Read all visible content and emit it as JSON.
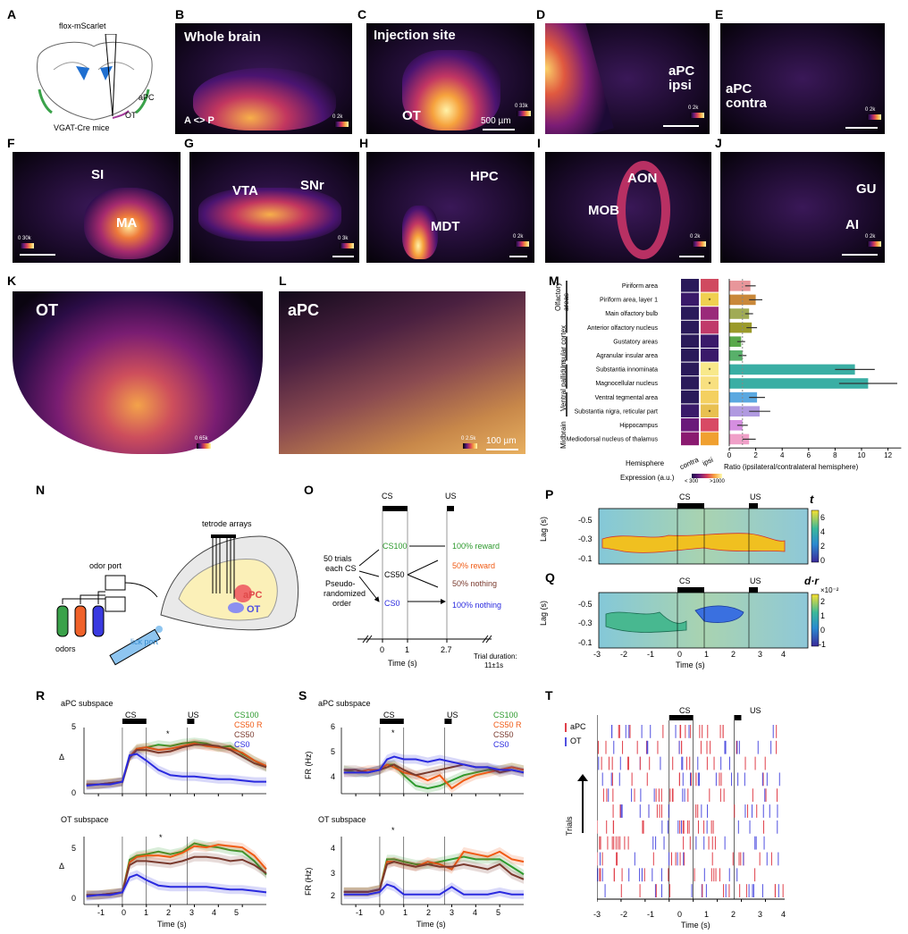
{
  "panels": {
    "A": "A",
    "B": "B",
    "C": "C",
    "D": "D",
    "E": "E",
    "F": "F",
    "G": "G",
    "H": "H",
    "I": "I",
    "J": "J",
    "K": "K",
    "L": "L",
    "M": "M",
    "N": "N",
    "O": "O",
    "P": "P",
    "Q": "Q",
    "R": "R",
    "S": "S",
    "T": "T"
  },
  "panelA": {
    "top": "flox-mScarlet",
    "bottom": "VGAT-Cre mice",
    "apc": "aPC",
    "ot": "OT"
  },
  "panelB": {
    "title": "Whole brain",
    "axis": "A <> P",
    "cbar": "0  2k"
  },
  "panelC": {
    "title": "Injection site",
    "label": "OT",
    "scale": "500 µm",
    "cbar": "0  33k"
  },
  "panelD": {
    "label": "aPC\nipsi",
    "cbar": "0  2k"
  },
  "panelE": {
    "label": "aPC\ncontra",
    "cbar": "0  2k"
  },
  "panelF": {
    "l1": "SI",
    "l2": "MA",
    "cbar": "0  30k"
  },
  "panelG": {
    "l1": "VTA",
    "l2": "SNr",
    "cbar": "0  3k"
  },
  "panelH": {
    "l1": "HPC",
    "l2": "MDT",
    "cbar": "0  2k"
  },
  "panelI": {
    "l1": "AON",
    "l2": "MOB",
    "cbar": "0  2k"
  },
  "panelJ": {
    "l1": "GU",
    "l2": "AI",
    "cbar": "0  2k"
  },
  "panelK": {
    "title": "OT",
    "scale": "250 µm",
    "cbar": "0  65k"
  },
  "panelL": {
    "title": "aPC",
    "scale": "100 µm",
    "cbar": "0  2.5k"
  },
  "panelM": {
    "groups": [
      "Olfactory areas",
      "Insular cortex",
      "Ventral pallidum",
      "Midbrain"
    ],
    "regions": [
      "Piriform area",
      "Piriform area, layer 1",
      "Main olfactory bulb",
      "Anterior olfactory nucleus",
      "Gustatory areas",
      "Agranular insular area",
      "Substantia innominata",
      "Magnocellular nucleus",
      "Ventral tegmental area",
      "Substantia nigra, reticular part",
      "Hippocampus",
      "Mediodorsal nucleus of thalamus"
    ],
    "hemisphere_label": "Hemisphere",
    "col_contra": "contra",
    "col_ipsi": "ipsi",
    "expression_label": "Expression (a.u.)",
    "exp_low": "< 300",
    "exp_high": ">1000",
    "xlabel": "Ratio (ipsilateral/contralateral hemisphere)",
    "xticks": [
      "0",
      "2",
      "4",
      "6",
      "8",
      "10",
      "12"
    ],
    "star": "*"
  },
  "panelN": {
    "tetrode": "tetrode arrays",
    "odorport": "odor port",
    "odors": "odors",
    "lickport": "lick port",
    "apc": "aPC",
    "ot": "OT"
  },
  "panelO": {
    "cs": "CS",
    "us": "US",
    "left1": "50 trials",
    "left2": "each CS",
    "left3": "Pseudo-",
    "left4": "randomized",
    "left5": "order",
    "cs100": "CS100",
    "cs50": "CS50",
    "cs0": "CS0",
    "r100": "100% reward",
    "r50": "50% reward",
    "n50": "50% nothing",
    "n100": "100% nothing",
    "t0": "0",
    "t1": "1",
    "t27": "2.7",
    "xlabel": "Time (s)",
    "dur1": "Trial duration:",
    "dur2": "11±1s"
  },
  "panelP": {
    "cs": "CS",
    "us": "US",
    "ylabel": "Lag (s)",
    "yticks": [
      "-0.5",
      "-0.3",
      "-0.1"
    ],
    "cbar_title": "t",
    "cbar_ticks": [
      "6",
      "4",
      "2",
      "0"
    ]
  },
  "panelQ": {
    "cs": "CS",
    "us": "US",
    "ylabel": "Lag (s)",
    "yticks": [
      "-0.5",
      "-0.3",
      "-0.1"
    ],
    "cbar_title": "d·r",
    "cbar_exp": "×10⁻²",
    "cbar_ticks": [
      "2",
      "1",
      "0",
      "-1"
    ],
    "xticks": [
      "-3",
      "-2",
      "-1",
      "0",
      "1",
      "2",
      "3",
      "4"
    ],
    "xlabel": "Time (s)"
  },
  "panelR": {
    "top_title": "aPC subspace",
    "bot_title": "OT subspace",
    "cs": "CS",
    "us": "US",
    "ylabel": "Δ",
    "star": "*",
    "legend": [
      "CS100",
      "CS50 R",
      "CS50",
      "CS0"
    ],
    "yticks_top": [
      "5",
      "0"
    ],
    "yticks_bot": [
      "5",
      "0"
    ],
    "xticks": [
      "-1",
      "0",
      "1",
      "2",
      "3",
      "4",
      "5"
    ],
    "xlabel": "Time (s)"
  },
  "panelS": {
    "top_title": "aPC subspace",
    "bot_title": "OT subspace",
    "cs": "CS",
    "us": "US",
    "ylabel": "FR (Hz)",
    "star": "*",
    "legend": [
      "CS100",
      "CS50 R",
      "CS50",
      "CS0"
    ],
    "yticks_top": [
      "6",
      "5",
      "4"
    ],
    "yticks_bot": [
      "4",
      "3",
      "2"
    ],
    "xticks": [
      "-1",
      "0",
      "1",
      "2",
      "3",
      "4",
      "5"
    ],
    "xlabel": "Time (s)"
  },
  "panelT": {
    "cs": "CS",
    "us": "US",
    "legend_apc": "aPC",
    "legend_ot": "OT",
    "ylabel": "Trials",
    "xticks": [
      "-3",
      "-2",
      "-1",
      "0",
      "1",
      "2",
      "3",
      "4"
    ],
    "xlabel": "Time (s)"
  },
  "colors": {
    "cs100": "#2e9a2e",
    "cs50r": "#f05a14",
    "cs50": "#7a3a2e",
    "cs0": "#2a2adf",
    "apc": "#e0404a",
    "ot": "#5050e0"
  },
  "chart_data": [
    {
      "type": "bar",
      "id": "M",
      "categories": [
        "Piriform area",
        "Piriform area, layer 1",
        "Main olfactory bulb",
        "Anterior olfactory nucleus",
        "Gustatory areas",
        "Agranular insular area",
        "Substantia innominata",
        "Magnocellular nucleus",
        "Ventral tegmental area",
        "Substantia nigra, reticular part",
        "Hippocampus",
        "Mediodorsal nucleus of thalamus"
      ],
      "values": [
        1.6,
        2.0,
        1.5,
        1.7,
        0.9,
        1.0,
        9.5,
        10.5,
        2.1,
        2.3,
        1.0,
        1.5
      ],
      "errors": [
        0.4,
        0.5,
        0.3,
        0.4,
        0.3,
        0.3,
        1.5,
        2.2,
        0.6,
        0.8,
        0.4,
        0.5
      ],
      "colors": [
        "#e8969a",
        "#c9883a",
        "#a0ab55",
        "#9b9a2a",
        "#59a84a",
        "#58b06a",
        "#3aaea4",
        "#3aaea4",
        "#5aa8e0",
        "#b09ae0",
        "#d58ee0",
        "#f0a0c8"
      ],
      "xlabel": "Ratio (ipsilateral/contralateral hemisphere)",
      "xlim": [
        0,
        13
      ]
    },
    {
      "type": "line",
      "id": "R-top",
      "title": "aPC subspace",
      "ylabel": "Δ",
      "xlabel": "Time (s)",
      "x": [
        -1.5,
        -1,
        -0.5,
        0,
        0.3,
        0.6,
        1,
        1.5,
        2,
        2.5,
        3,
        3.5,
        4,
        4.5,
        5,
        5.5,
        6
      ],
      "series": [
        {
          "name": "CS100",
          "values": [
            0.7,
            0.7,
            0.8,
            0.9,
            2.8,
            3.4,
            3.5,
            3.7,
            3.6,
            3.8,
            3.9,
            3.8,
            3.5,
            3.6,
            3.0,
            2.5,
            2.0
          ]
        },
        {
          "name": "CS50 R",
          "values": [
            0.7,
            0.7,
            0.8,
            0.9,
            2.8,
            3.4,
            3.5,
            3.3,
            3.4,
            3.6,
            3.8,
            3.6,
            3.5,
            3.4,
            3.1,
            2.5,
            2.1
          ]
        },
        {
          "name": "CS50",
          "values": [
            0.7,
            0.7,
            0.8,
            0.9,
            2.7,
            3.3,
            3.3,
            3.1,
            3.2,
            3.5,
            3.7,
            3.7,
            3.6,
            3.3,
            2.8,
            2.3,
            2.0
          ]
        },
        {
          "name": "CS0",
          "values": [
            0.6,
            0.7,
            0.7,
            0.9,
            2.9,
            3.0,
            2.5,
            1.8,
            1.4,
            1.3,
            1.3,
            1.2,
            1.1,
            1.1,
            1.0,
            0.9,
            0.9
          ]
        }
      ],
      "ylim": [
        0,
        5
      ]
    },
    {
      "type": "line",
      "id": "R-bottom",
      "title": "OT subspace",
      "ylabel": "Δ",
      "xlabel": "Time (s)",
      "x": [
        -1.5,
        -1,
        -0.5,
        0,
        0.3,
        0.6,
        1,
        1.5,
        2,
        2.5,
        3,
        3.5,
        4,
        4.5,
        5,
        5.5,
        6
      ],
      "series": [
        {
          "name": "CS100",
          "values": [
            0.7,
            0.7,
            0.8,
            0.9,
            3.3,
            3.6,
            3.7,
            3.9,
            3.7,
            3.9,
            4.5,
            4.3,
            4.2,
            4.0,
            3.9,
            3.2,
            2.2
          ]
        },
        {
          "name": "CS50 R",
          "values": [
            0.7,
            0.7,
            0.8,
            0.9,
            3.1,
            3.5,
            3.6,
            3.6,
            3.5,
            3.8,
            4.3,
            4.2,
            4.4,
            4.3,
            4.2,
            3.6,
            2.6
          ]
        },
        {
          "name": "CS50",
          "values": [
            0.7,
            0.7,
            0.8,
            0.9,
            2.9,
            3.2,
            3.2,
            3.1,
            3.0,
            3.2,
            3.5,
            3.5,
            3.4,
            3.2,
            3.3,
            2.9,
            2.3
          ]
        },
        {
          "name": "CS0",
          "values": [
            0.6,
            0.7,
            0.7,
            0.9,
            2.0,
            2.2,
            1.8,
            1.4,
            1.3,
            1.3,
            1.3,
            1.3,
            1.2,
            1.1,
            1.1,
            1.0,
            0.9
          ]
        }
      ],
      "ylim": [
        0,
        5
      ]
    },
    {
      "type": "line",
      "id": "S-top",
      "title": "aPC subspace",
      "ylabel": "FR (Hz)",
      "xlabel": "Time (s)",
      "x": [
        -1.5,
        -1,
        -0.5,
        0,
        0.3,
        0.6,
        1,
        1.5,
        2,
        2.5,
        3,
        3.5,
        4,
        4.5,
        5,
        5.5,
        6
      ],
      "series": [
        {
          "name": "CS100",
          "values": [
            4.4,
            4.3,
            4.3,
            4.4,
            4.6,
            4.6,
            4.2,
            3.8,
            3.7,
            3.8,
            4.0,
            4.2,
            4.3,
            4.4,
            4.4,
            4.5,
            4.4
          ]
        },
        {
          "name": "CS50 R",
          "values": [
            4.3,
            4.3,
            4.4,
            4.4,
            4.6,
            4.5,
            4.3,
            4.2,
            4.0,
            4.2,
            3.7,
            4.0,
            4.2,
            4.3,
            4.4,
            4.5,
            4.4
          ]
        },
        {
          "name": "CS50",
          "values": [
            4.4,
            4.4,
            4.3,
            4.4,
            4.5,
            4.6,
            4.4,
            4.2,
            4.3,
            4.4,
            4.5,
            4.6,
            4.5,
            4.5,
            4.3,
            4.4,
            4.3
          ]
        },
        {
          "name": "CS0",
          "values": [
            4.3,
            4.3,
            4.3,
            4.4,
            4.8,
            4.9,
            4.8,
            4.8,
            4.7,
            4.8,
            4.7,
            4.6,
            4.5,
            4.5,
            4.4,
            4.4,
            4.3
          ]
        }
      ],
      "ylim": [
        3.5,
        6
      ]
    },
    {
      "type": "line",
      "id": "S-bottom",
      "title": "OT subspace",
      "ylabel": "FR (Hz)",
      "xlabel": "Time (s)",
      "x": [
        -1.5,
        -1,
        -0.5,
        0,
        0.3,
        0.6,
        1,
        1.5,
        2,
        2.5,
        3,
        3.5,
        4,
        4.5,
        5,
        5.5,
        6
      ],
      "series": [
        {
          "name": "CS100",
          "values": [
            2.3,
            2.3,
            2.3,
            2.4,
            3.6,
            3.6,
            3.5,
            3.4,
            3.4,
            3.5,
            3.6,
            3.7,
            3.6,
            3.6,
            3.6,
            3.3,
            3.0
          ]
        },
        {
          "name": "CS50 R",
          "values": [
            2.3,
            2.3,
            2.3,
            2.4,
            3.5,
            3.5,
            3.4,
            3.3,
            3.5,
            3.4,
            3.2,
            3.9,
            3.8,
            3.7,
            3.9,
            3.6,
            3.5
          ]
        },
        {
          "name": "CS50",
          "values": [
            2.3,
            2.3,
            2.3,
            2.4,
            3.4,
            3.5,
            3.4,
            3.3,
            3.4,
            3.3,
            3.3,
            3.4,
            3.3,
            3.2,
            3.4,
            3.0,
            2.8
          ]
        },
        {
          "name": "CS0",
          "values": [
            2.2,
            2.2,
            2.2,
            2.3,
            2.6,
            2.5,
            2.2,
            2.2,
            2.2,
            2.2,
            2.5,
            2.2,
            2.2,
            2.2,
            2.3,
            2.2,
            2.2
          ]
        }
      ],
      "ylim": [
        1.8,
        4.5
      ]
    }
  ]
}
